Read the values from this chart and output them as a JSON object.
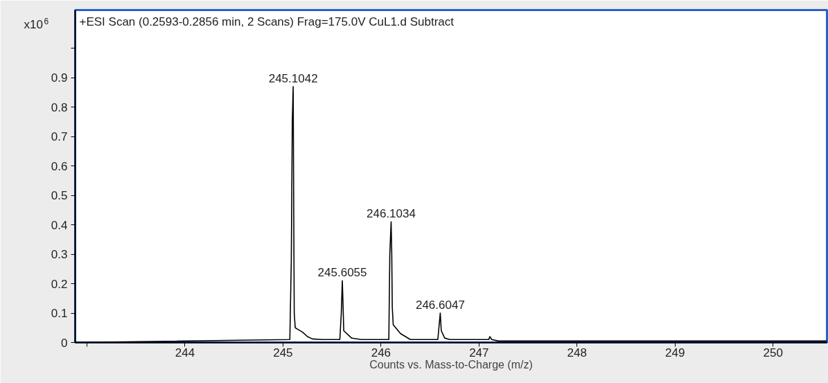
{
  "chart_data": {
    "type": "line",
    "title": "+ESI Scan (0.2593-0.2856 min, 2 Scans) Frag=175.0V CuL1.d  Subtract",
    "xlabel": "Counts vs. Mass-to-Charge (m/z)",
    "ylabel": "x10$^{6}$",
    "x": [
      242.88,
      245.07,
      245.085,
      245.095,
      245.1042,
      245.11,
      245.115,
      245.125,
      245.15,
      245.2,
      245.25,
      245.3,
      245.4,
      245.58,
      245.595,
      245.6055,
      245.612,
      245.62,
      245.7,
      245.8,
      246.08,
      246.09,
      246.1034,
      246.11,
      246.115,
      246.125,
      246.2,
      246.3,
      246.58,
      246.6047,
      246.615,
      246.65,
      246.7,
      247.1,
      247.11,
      247.13,
      247.2,
      250.55
    ],
    "series": [
      {
        "color": "#000000",
        "values": [
          0,
          0.01,
          0.28,
          0.75,
          0.87,
          0.43,
          0.1,
          0.05,
          0.045,
          0.035,
          0.02,
          0.012,
          0.01,
          0.01,
          0.1,
          0.21,
          0.14,
          0.04,
          0.015,
          0.01,
          0.01,
          0.3,
          0.41,
          0.3,
          0.12,
          0.06,
          0.03,
          0.01,
          0.01,
          0.1,
          0.04,
          0.015,
          0.01,
          0.01,
          0.02,
          0.01,
          0.005,
          0.005
        ]
      }
    ],
    "annotations": [
      {
        "text": "245.1042",
        "x": 245.1042,
        "y": 0.87
      },
      {
        "text": "245.6055",
        "x": 245.6055,
        "y": 0.21
      },
      {
        "text": "246.1034",
        "x": 246.1034,
        "y": 0.41
      },
      {
        "text": "246.6047",
        "x": 246.6047,
        "y": 0.1
      }
    ],
    "xlim": [
      242.88,
      250.55
    ],
    "ylim": [
      0,
      1.13
    ],
    "xticks": [
      {
        "value": 243,
        "label": null
      },
      244,
      245,
      246,
      247,
      248,
      249,
      250
    ],
    "yticks": [
      0,
      0.1,
      0.2,
      0.3,
      0.4,
      0.5,
      0.6,
      0.7,
      0.8,
      0.9,
      {
        "value": 1,
        "label": null
      }
    ],
    "line_style": "solid",
    "marker": "none"
  }
}
